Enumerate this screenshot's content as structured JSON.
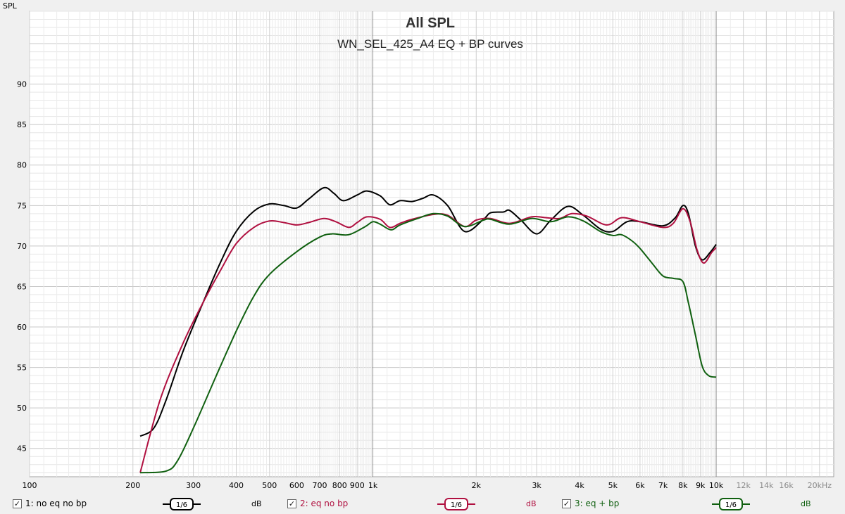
{
  "chart_data": {
    "type": "line",
    "title": "All SPL",
    "subtitle": "WN_SEL_425_A4 EQ + BP curves",
    "ylabel": "SPL",
    "xlabel": "",
    "xscale": "log",
    "xlim": [
      100,
      22000
    ],
    "ylim": [
      41.5,
      99
    ],
    "yticks": [
      45,
      50,
      55,
      60,
      65,
      70,
      75,
      80,
      85,
      90
    ],
    "xticks": [
      {
        "v": 100,
        "label": "100"
      },
      {
        "v": 200,
        "label": "200"
      },
      {
        "v": 300,
        "label": "300"
      },
      {
        "v": 400,
        "label": "400"
      },
      {
        "v": 500,
        "label": "500"
      },
      {
        "v": 600,
        "label": "600"
      },
      {
        "v": 700,
        "label": "700"
      },
      {
        "v": 800,
        "label": "800"
      },
      {
        "v": 900,
        "label": "900"
      },
      {
        "v": 1000,
        "label": "1k"
      },
      {
        "v": 2000,
        "label": "2k"
      },
      {
        "v": 3000,
        "label": "3k"
      },
      {
        "v": 4000,
        "label": "4k"
      },
      {
        "v": 5000,
        "label": "5k"
      },
      {
        "v": 6000,
        "label": "6k"
      },
      {
        "v": 7000,
        "label": "7k"
      },
      {
        "v": 8000,
        "label": "8k"
      },
      {
        "v": 9000,
        "label": "9k"
      },
      {
        "v": 10000,
        "label": "10k"
      },
      {
        "v": 12000,
        "label": "12k"
      },
      {
        "v": 14000,
        "label": "14k"
      },
      {
        "v": 16000,
        "label": "16k"
      },
      {
        "v": 20000,
        "label": "20kHz"
      }
    ],
    "grid": true,
    "series": [
      {
        "name": "1: no eq no bp",
        "color": "#000000",
        "points": [
          [
            210,
            46.5
          ],
          [
            230,
            47.5
          ],
          [
            250,
            51
          ],
          [
            280,
            57
          ],
          [
            320,
            63
          ],
          [
            360,
            68
          ],
          [
            400,
            71.8
          ],
          [
            450,
            74.3
          ],
          [
            500,
            75.2
          ],
          [
            550,
            75
          ],
          [
            600,
            74.7
          ],
          [
            650,
            75.8
          ],
          [
            720,
            77.2
          ],
          [
            770,
            76.5
          ],
          [
            820,
            75.6
          ],
          [
            900,
            76.3
          ],
          [
            960,
            76.8
          ],
          [
            1050,
            76.2
          ],
          [
            1120,
            75.1
          ],
          [
            1200,
            75.6
          ],
          [
            1300,
            75.5
          ],
          [
            1400,
            75.9
          ],
          [
            1500,
            76.3
          ],
          [
            1650,
            75
          ],
          [
            1850,
            71.8
          ],
          [
            2100,
            73.3
          ],
          [
            2200,
            74.1
          ],
          [
            2400,
            74.2
          ],
          [
            2500,
            74.4
          ],
          [
            2700,
            73.2
          ],
          [
            3000,
            71.5
          ],
          [
            3300,
            73.2
          ],
          [
            3700,
            74.9
          ],
          [
            4100,
            73.8
          ],
          [
            4600,
            72.1
          ],
          [
            5000,
            71.8
          ],
          [
            5500,
            73
          ],
          [
            6000,
            73
          ],
          [
            7000,
            72.5
          ],
          [
            7600,
            73.5
          ],
          [
            8000,
            75
          ],
          [
            8300,
            74
          ],
          [
            8700,
            70
          ],
          [
            9100,
            68.3
          ],
          [
            9600,
            69.2
          ],
          [
            10000,
            70.2
          ]
        ]
      },
      {
        "name": "2: eq no bp",
        "color": "#b01040",
        "points": [
          [
            210,
            42
          ],
          [
            240,
            51
          ],
          [
            280,
            58
          ],
          [
            320,
            63
          ],
          [
            360,
            67
          ],
          [
            400,
            70.3
          ],
          [
            450,
            72.3
          ],
          [
            500,
            73.1
          ],
          [
            550,
            72.9
          ],
          [
            600,
            72.6
          ],
          [
            650,
            72.9
          ],
          [
            720,
            73.4
          ],
          [
            780,
            73
          ],
          [
            850,
            72.3
          ],
          [
            900,
            72.9
          ],
          [
            960,
            73.6
          ],
          [
            1050,
            73.3
          ],
          [
            1120,
            72.3
          ],
          [
            1200,
            72.8
          ],
          [
            1300,
            73.3
          ],
          [
            1500,
            73.9
          ],
          [
            1650,
            73.8
          ],
          [
            1850,
            72.4
          ],
          [
            2000,
            73.2
          ],
          [
            2200,
            73.4
          ],
          [
            2500,
            72.8
          ],
          [
            2900,
            73.6
          ],
          [
            3200,
            73.5
          ],
          [
            3500,
            73.4
          ],
          [
            3800,
            74
          ],
          [
            4200,
            73.7
          ],
          [
            4800,
            72.6
          ],
          [
            5300,
            73.5
          ],
          [
            6000,
            73
          ],
          [
            7000,
            72.3
          ],
          [
            7500,
            72.8
          ],
          [
            8000,
            74.6
          ],
          [
            8400,
            73
          ],
          [
            8800,
            69.5
          ],
          [
            9200,
            67.9
          ],
          [
            9700,
            69.2
          ],
          [
            10000,
            69.8
          ]
        ]
      },
      {
        "name": "3: eq + bp",
        "color": "#106010",
        "points": [
          [
            210,
            42
          ],
          [
            250,
            42.2
          ],
          [
            270,
            43.5
          ],
          [
            300,
            47.5
          ],
          [
            350,
            54
          ],
          [
            400,
            59.5
          ],
          [
            450,
            63.8
          ],
          [
            500,
            66.5
          ],
          [
            600,
            69.3
          ],
          [
            700,
            71.1
          ],
          [
            760,
            71.5
          ],
          [
            850,
            71.4
          ],
          [
            950,
            72.4
          ],
          [
            1000,
            73
          ],
          [
            1050,
            72.7
          ],
          [
            1130,
            72
          ],
          [
            1200,
            72.6
          ],
          [
            1350,
            73.4
          ],
          [
            1500,
            74
          ],
          [
            1650,
            73.7
          ],
          [
            1850,
            72.4
          ],
          [
            2100,
            73.2
          ],
          [
            2200,
            73.3
          ],
          [
            2500,
            72.7
          ],
          [
            2900,
            73.4
          ],
          [
            3300,
            73
          ],
          [
            3700,
            73.6
          ],
          [
            4100,
            73.1
          ],
          [
            4600,
            71.8
          ],
          [
            5000,
            71.3
          ],
          [
            5300,
            71.4
          ],
          [
            5700,
            70.6
          ],
          [
            6000,
            69.7
          ],
          [
            6500,
            67.9
          ],
          [
            7000,
            66.3
          ],
          [
            7500,
            66
          ],
          [
            8000,
            65.6
          ],
          [
            8300,
            63
          ],
          [
            8700,
            59
          ],
          [
            9100,
            55.2
          ],
          [
            9500,
            54
          ],
          [
            10000,
            53.8
          ]
        ]
      }
    ]
  },
  "legend": [
    {
      "label": "1: no eq no bp",
      "checked": "✓",
      "smoothing": "1/6",
      "unit": "dB",
      "color": "#000000"
    },
    {
      "label": "2: eq no bp",
      "checked": "✓",
      "smoothing": "1/6",
      "unit": "dB",
      "color": "#b01040"
    },
    {
      "label": "3: eq + bp",
      "checked": "✓",
      "smoothing": "1/6",
      "unit": "dB",
      "color": "#106010"
    }
  ]
}
